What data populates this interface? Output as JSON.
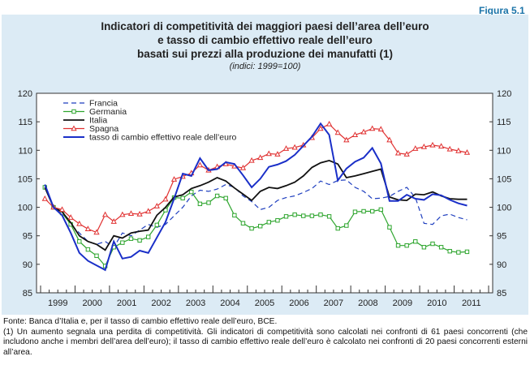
{
  "figure_label": "Figura 5.1",
  "title_lines": [
    "Indicatori di competitività dei maggiori paesi dell’area dell’euro",
    "e tasso di cambio effettivo reale dell’euro",
    "basati sui prezzi alla produzione dei manufatti (1)"
  ],
  "subtitle": "(indici: 1999=100)",
  "footnotes": [
    "Fonte: Banca d’Italia e, per il tasso di cambio effettivo reale dell’euro, BCE.",
    "(1) Un aumento segnala una perdita di competitività. Gli indicatori di competitività sono calcolati nei confronti di 61 paesi concorrenti (che includono anche i membri dell’area dell’euro); il tasso di cambio effettivo reale dell’euro è calcolato nei confronti di 20 paesi concorrenti esterni all’area."
  ],
  "chart_data": {
    "type": "line",
    "x_unit": "quarter",
    "ylim": [
      85,
      120
    ],
    "yticks": [
      85,
      90,
      95,
      100,
      105,
      110,
      115,
      120
    ],
    "year_labels": [
      "1999",
      "2000",
      "2001",
      "2002",
      "2003",
      "2004",
      "2005",
      "2006",
      "2007",
      "2008",
      "2009",
      "2010",
      "2011"
    ],
    "legend_position": "top-left",
    "grid": false,
    "series": [
      {
        "name": "Francia",
        "color": "#1f3fbf",
        "style": "dashed",
        "marker": "none",
        "values": [
          103.5,
          100,
          99.2,
          97,
          95.5,
          94,
          93.5,
          94,
          93,
          95.5,
          95,
          96,
          97,
          96.5,
          97,
          98.5,
          100,
          102,
          103,
          102.8,
          103.2,
          104,
          103.5,
          102,
          101,
          99.6,
          100,
          101.2,
          101.7,
          102,
          102.6,
          103.3,
          104.6,
          104,
          104.7,
          104.8,
          103.5,
          102.8,
          101.5,
          101.6,
          101.9,
          102.8,
          103.5,
          101.7,
          97.2,
          97,
          98.5,
          98.8,
          98.2,
          97.8
        ]
      },
      {
        "name": "Germania",
        "color": "#2ea52e",
        "style": "solid",
        "marker": "square",
        "values": [
          103.5,
          100,
          99,
          97,
          94,
          92.6,
          91.5,
          89.7,
          93,
          93.8,
          94.5,
          94.2,
          94.8,
          96.9,
          99.5,
          101.7,
          101.6,
          102.7,
          100.6,
          100.8,
          102,
          101.6,
          98.6,
          97.2,
          96.3,
          96.7,
          97.4,
          97.7,
          98.4,
          98.7,
          98.5,
          98.5,
          98.7,
          98.4,
          96.3,
          96.8,
          99.2,
          99.3,
          99.3,
          99.6,
          96.5,
          93.3,
          93.3,
          94,
          93,
          93.6,
          93,
          92.3,
          92.1,
          92.2
        ]
      },
      {
        "name": "Italia",
        "color": "#111111",
        "style": "solid",
        "marker": "none",
        "values": [
          103.5,
          100,
          99.2,
          97.3,
          95,
          94,
          93.5,
          92.5,
          95,
          94.6,
          95.5,
          95.8,
          96,
          98.6,
          100,
          101.8,
          102.2,
          103.3,
          103.8,
          104.4,
          105.2,
          104.6,
          103.4,
          102.3,
          101.2,
          102.8,
          103.5,
          103.3,
          103.8,
          104.4,
          105.5,
          107,
          107.8,
          108.2,
          107.6,
          105.2,
          105.5,
          105.9,
          106.3,
          106.7,
          101.8,
          101.3,
          101.2,
          102.3,
          102.2,
          102.7,
          102,
          101.5,
          101.4,
          101.4
        ]
      },
      {
        "name": "Spagna",
        "color": "#e03030",
        "style": "solid",
        "marker": "triangle",
        "values": [
          101.5,
          100,
          99.6,
          98.2,
          97.1,
          96.2,
          95.6,
          98.7,
          97.5,
          98.7,
          98.9,
          98.8,
          99.3,
          100.2,
          101.4,
          104.9,
          105.4,
          106,
          107.4,
          106.5,
          107.1,
          107.6,
          107.2,
          106.9,
          108.2,
          108.7,
          109.4,
          109.3,
          110.3,
          110.5,
          110.9,
          112.2,
          113.8,
          114.6,
          113.1,
          111.8,
          112.7,
          113.2,
          113.8,
          113.7,
          111.8,
          109.5,
          109.3,
          110.3,
          110.6,
          110.9,
          110.7,
          110.2,
          109.9,
          109.6
        ]
      },
      {
        "name": "tasso di cambio effettivo reale dell’euro",
        "color": "#1a2fc8",
        "style": "solid",
        "marker": "none",
        "values": [
          104,
          100,
          98.6,
          95.5,
          92,
          90.6,
          89.8,
          89,
          94,
          91,
          91.3,
          92.4,
          92,
          94.7,
          97.4,
          101.5,
          105.9,
          105.5,
          108.6,
          106.5,
          106.7,
          107.9,
          107.6,
          105.6,
          103.5,
          105,
          107.1,
          107.5,
          108.1,
          109.2,
          110.8,
          112.4,
          114.7,
          112.7,
          104.7,
          106.8,
          108,
          108.7,
          110.4,
          107.7,
          101.1,
          101.1,
          102.2,
          101.5,
          101.3,
          102.3,
          102.1,
          101.3,
          100.7,
          100.3
        ]
      }
    ]
  }
}
